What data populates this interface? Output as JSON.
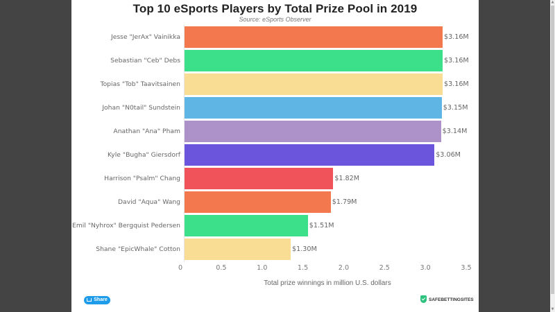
{
  "chart_data": {
    "type": "bar",
    "orientation": "horizontal",
    "title": "Top 10 eSports Players by Total Prize Pool in 2019",
    "subtitle": "Source: eSports Observer",
    "xlabel": "Total prize winnings in million U.S. dollars",
    "ylabel": "",
    "xlim": [
      0,
      3.5
    ],
    "xticks": [
      "0",
      "0.5",
      "1.0",
      "1.5",
      "2.0",
      "2.5",
      "3.0",
      "3.5"
    ],
    "grid": false,
    "legend": null,
    "categories": [
      "Jesse \"JerAx\" Vainikka",
      "Sebastian \"Ceb\" Debs",
      "Topias \"Tob\" Taavitsainen",
      "Johan \"N0tail\" Sundstein",
      "Anathan \"Ana\" Pham",
      "Kyle \"Bugha\" Giersdorf",
      "Harrison \"Psalm\" Chang",
      "David \"Aqua\" Wang",
      "Emil \"Nyhrox\" Bergquist Pedersen",
      "Shane \"EpicWhale\" Cotton"
    ],
    "values": [
      3.16,
      3.16,
      3.16,
      3.15,
      3.14,
      3.06,
      1.82,
      1.79,
      1.51,
      1.3
    ],
    "value_labels": [
      "$3.16M",
      "$3.16M",
      "$3.16M",
      "$3.15M",
      "$3.14M",
      "$3.06M",
      "$1.82M",
      "$1.79M",
      "$1.51M",
      "$1.30M"
    ],
    "colors": [
      "#f4784d",
      "#3ce08a",
      "#f9dd95",
      "#5fb6e4",
      "#ac92c8",
      "#6b55dc",
      "#f0545a",
      "#f4784d",
      "#3ce08a",
      "#f9dd95"
    ]
  },
  "footer": {
    "share_label": "Share",
    "brand": "SAFEBETTINGSITES"
  }
}
